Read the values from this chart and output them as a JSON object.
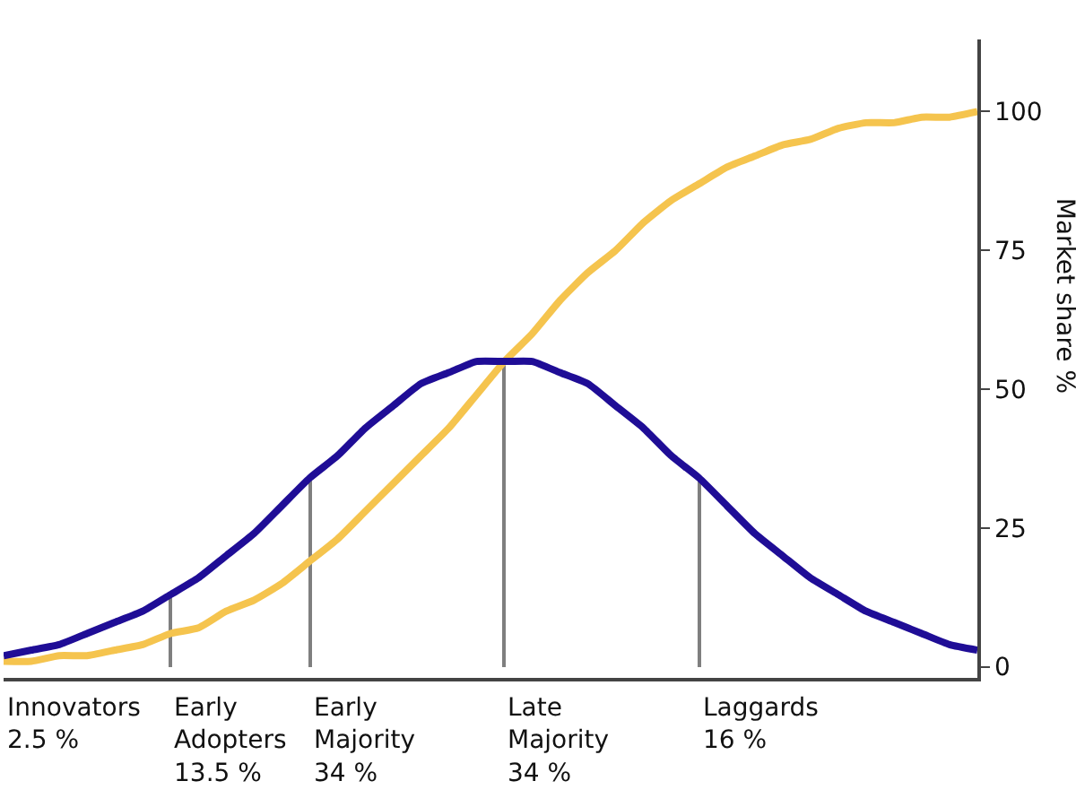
{
  "chart_data": {
    "type": "line",
    "ylabel": "Market share %",
    "categories": [
      null,
      null,
      null,
      null,
      null,
      null,
      null,
      null,
      null,
      null,
      null,
      null,
      null,
      null,
      null,
      null,
      null,
      null,
      null,
      null,
      null,
      null,
      null,
      null,
      null,
      null,
      null,
      null,
      null,
      null,
      null,
      null,
      null,
      null,
      null,
      null
    ],
    "series": [
      {
        "type": "bar",
        "color": "#7f7f7f",
        "values": [
          null,
          null,
          null,
          null,
          null,
          null,
          13,
          null,
          null,
          null,
          null,
          34,
          null,
          null,
          null,
          null,
          null,
          null,
          55,
          null,
          null,
          null,
          null,
          null,
          null,
          34,
          null,
          null,
          null,
          null,
          null,
          null,
          null,
          null,
          null,
          null
        ]
      },
      {
        "color": "#f5c44e",
        "values": [
          1,
          1,
          2,
          2,
          3,
          4,
          6,
          7,
          10,
          12,
          15,
          19,
          23,
          28,
          33,
          38,
          43,
          49,
          55,
          60,
          66,
          71,
          75,
          80,
          84,
          87,
          90,
          92,
          94,
          95,
          97,
          98,
          98,
          99,
          99,
          100
        ]
      },
      {
        "color": "#1f0d96",
        "values": [
          2,
          3,
          4,
          6,
          8,
          10,
          13,
          16,
          20,
          24,
          29,
          34,
          38,
          43,
          47,
          51,
          53,
          55,
          55,
          55,
          53,
          51,
          47,
          43,
          38,
          34,
          29,
          24,
          20,
          16,
          13,
          10,
          8,
          6,
          4,
          3
        ]
      }
    ],
    "ylim": [
      -2,
      113
    ],
    "yticks": [
      0,
      25,
      50,
      75,
      100
    ],
    "tick_labels": "y",
    "marker": "none",
    "line_style": "solid",
    "annotations": [
      "Innovators\n2.5 %",
      "Early\nAdopters\n13.5 %",
      "Early\nMajority\n34 %",
      "Late\nMajority\n34 %",
      "Laggards\n16 %"
    ]
  }
}
